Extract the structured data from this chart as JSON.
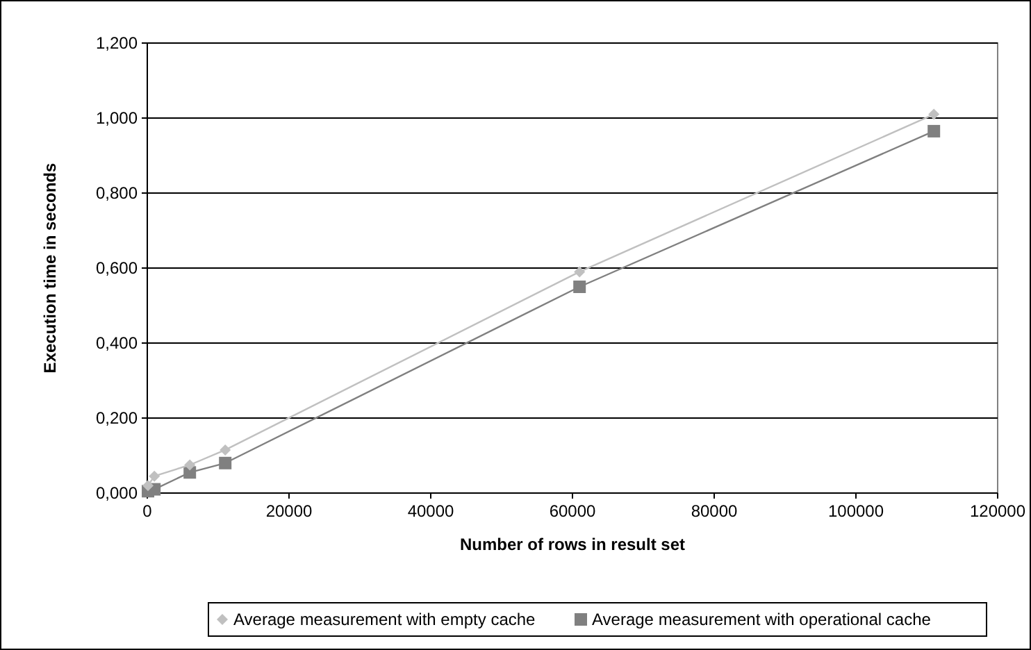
{
  "chart_data": {
    "type": "line",
    "xlabel": "Number of rows in result set",
    "ylabel": "Execution time in seconds",
    "x": [
      100,
      1000,
      6000,
      11000,
      61000,
      111000
    ],
    "series": [
      {
        "name": "Average measurement with empty cache",
        "color": "#c0c0c0",
        "marker": "diamond",
        "values": [
          0.02,
          0.045,
          0.075,
          0.115,
          0.59,
          1.01
        ]
      },
      {
        "name": "Average measurement with operational cache",
        "color": "#808080",
        "marker": "square",
        "values": [
          0.005,
          0.01,
          0.055,
          0.08,
          0.55,
          0.965
        ]
      }
    ],
    "xlim": [
      0,
      120000
    ],
    "xticks": [
      0,
      20000,
      40000,
      60000,
      80000,
      100000,
      120000
    ],
    "ylim": [
      0,
      1.2
    ],
    "yticks": [
      {
        "value": 0,
        "label": "0,000"
      },
      {
        "value": 0.2,
        "label": "0,200"
      },
      {
        "value": 0.4,
        "label": "0,400"
      },
      {
        "value": 0.6,
        "label": "0,600"
      },
      {
        "value": 0.8,
        "label": "0,800"
      },
      {
        "value": 1,
        "label": "1,000"
      },
      {
        "value": 1.2,
        "label": "1,200"
      }
    ],
    "grid": "y",
    "legend": "bottom",
    "line_style": "solid"
  }
}
